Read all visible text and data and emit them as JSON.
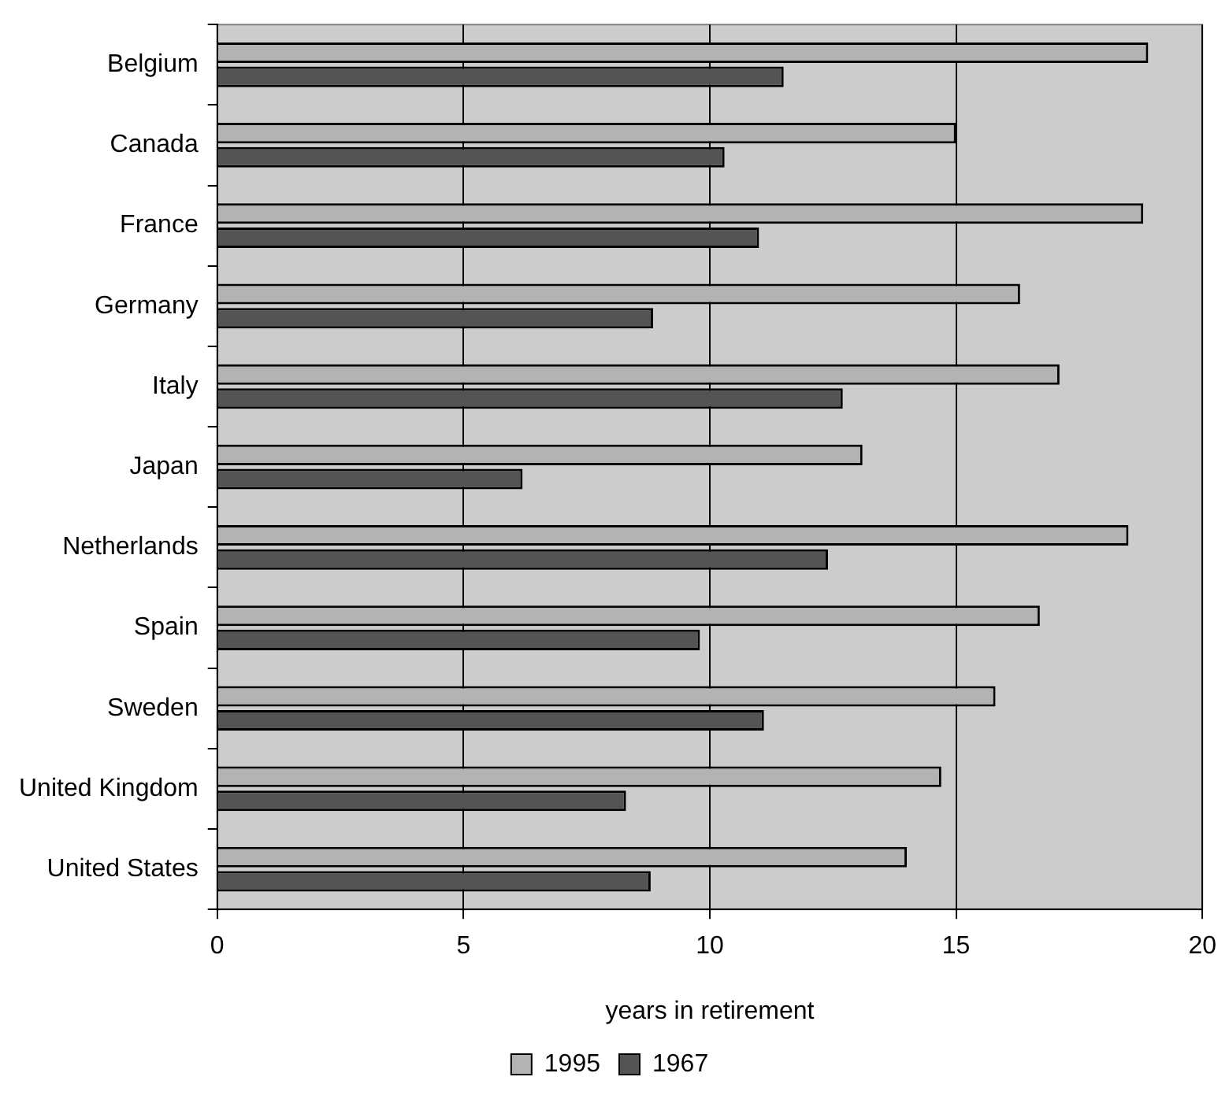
{
  "chart_data": {
    "type": "bar",
    "orientation": "horizontal",
    "xlabel": "years in retirement",
    "categories": [
      "Belgium",
      "Canada",
      "France",
      "Germany",
      "Italy",
      "Japan",
      "Netherlands",
      "Spain",
      "Sweden",
      "United Kingdom",
      "United States"
    ],
    "series": [
      {
        "name": "1995",
        "color": "#b3b3b3",
        "values": [
          18.9,
          15.0,
          18.8,
          16.3,
          17.1,
          13.1,
          18.5,
          16.7,
          15.8,
          14.7,
          14.0
        ]
      },
      {
        "name": "1967",
        "color": "#545454",
        "values": [
          11.5,
          10.3,
          11.0,
          8.85,
          12.7,
          6.2,
          12.4,
          9.8,
          11.1,
          8.3,
          8.8
        ]
      }
    ],
    "xlim": [
      0,
      20
    ],
    "xticks": [
      0,
      5,
      10,
      15,
      20
    ],
    "grid": "x",
    "legend": "bottom"
  }
}
